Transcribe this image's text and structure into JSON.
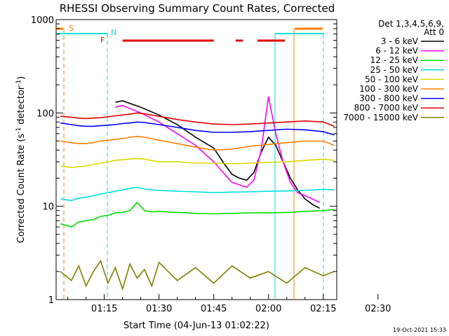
{
  "chart_data": {
    "type": "line",
    "title": "RHESSI Observing Summary Count Rates, Corrected",
    "xlabel": "Start Time (04-Jun-13 01:02:22)",
    "ylabel_main": "Corrected Count Rate (s",
    "ylabel_sup1": "-1",
    "ylabel_mid": " detector",
    "ylabel_sup2": "-1",
    "ylabel_end": ")",
    "yscale": "log",
    "ylim": [
      1,
      1000
    ],
    "xlim_min": [
      61.8,
      138.7
    ],
    "x_unit": "minutes after 00:00 UT",
    "x_ticks": [
      {
        "v": 75,
        "label": "01:15"
      },
      {
        "v": 90,
        "label": "01:30"
      },
      {
        "v": 105,
        "label": "01:45"
      },
      {
        "v": 120,
        "label": "02:00"
      },
      {
        "v": 135,
        "label": "02:15"
      },
      {
        "v": 150,
        "label": "02:30"
      }
    ],
    "y_ticks": [
      {
        "v": 1,
        "label": "1"
      },
      {
        "v": 10,
        "label": "10"
      },
      {
        "v": 100,
        "label": "100"
      },
      {
        "v": 1000,
        "label": "1000"
      }
    ],
    "legend_header": [
      "Det 1,3,4,5,6,9,",
      "Att 0"
    ],
    "legend_position": "right",
    "flags": {
      "saa_label": "S",
      "night_label": "N",
      "flare_label": "F",
      "night_color": "#00e0e0",
      "saa_color": "#ff7f00",
      "flare_color": "#e00000",
      "flare_segments": [
        [
          80,
          105
        ],
        [
          111,
          113
        ],
        [
          117,
          124.5
        ]
      ]
    },
    "footer_timestamp": "19-Oct-2021 15:33",
    "series": [
      {
        "name": "3 - 6 keV",
        "color": "#000000",
        "points": [
          [
            78,
            130
          ],
          [
            80,
            135
          ],
          [
            85,
            115
          ],
          [
            90,
            95
          ],
          [
            95,
            75
          ],
          [
            100,
            55
          ],
          [
            105,
            42
          ],
          [
            108,
            28
          ],
          [
            110,
            22
          ],
          [
            112,
            20
          ],
          [
            114,
            19
          ],
          [
            116,
            23
          ],
          [
            118,
            38
          ],
          [
            120,
            55
          ],
          [
            122,
            45
          ],
          [
            124,
            30
          ],
          [
            126,
            20
          ],
          [
            128,
            15
          ],
          [
            130,
            12
          ],
          [
            132,
            10.5
          ],
          [
            134,
            9.5
          ]
        ]
      },
      {
        "name": "6 - 12 keV",
        "color": "#ff00ff",
        "points": [
          [
            78,
            115
          ],
          [
            80,
            120
          ],
          [
            85,
            100
          ],
          [
            90,
            80
          ],
          [
            95,
            60
          ],
          [
            100,
            45
          ],
          [
            105,
            30
          ],
          [
            108,
            22
          ],
          [
            110,
            18
          ],
          [
            112,
            17
          ],
          [
            114,
            16
          ],
          [
            116,
            19
          ],
          [
            118,
            40
          ],
          [
            120,
            150
          ],
          [
            122,
            60
          ],
          [
            124,
            30
          ],
          [
            126,
            18
          ],
          [
            128,
            14
          ],
          [
            130,
            13
          ],
          [
            132,
            12
          ],
          [
            134,
            11
          ]
        ]
      },
      {
        "name": "12 - 25 keV",
        "color": "#00e000",
        "points": [
          [
            63,
            6.5
          ],
          [
            66,
            6
          ],
          [
            68,
            6.8
          ],
          [
            70,
            7
          ],
          [
            72,
            7.2
          ],
          [
            74,
            7.8
          ],
          [
            76,
            8
          ],
          [
            78,
            8.5
          ],
          [
            80,
            8.6
          ],
          [
            82,
            9
          ],
          [
            84,
            11
          ],
          [
            86,
            9
          ],
          [
            88,
            8.7
          ],
          [
            90,
            8.8
          ],
          [
            95,
            8.6
          ],
          [
            100,
            8.4
          ],
          [
            105,
            8.3
          ],
          [
            110,
            8.4
          ],
          [
            115,
            8.5
          ],
          [
            120,
            8.5
          ],
          [
            125,
            8.6
          ],
          [
            130,
            8.8
          ],
          [
            135,
            9
          ],
          [
            138,
            9.2
          ]
        ]
      },
      {
        "name": "25 - 50 keV",
        "color": "#00e0e0",
        "points": [
          [
            63,
            12
          ],
          [
            66,
            11.5
          ],
          [
            68,
            12.2
          ],
          [
            70,
            12.5
          ],
          [
            72,
            13
          ],
          [
            74,
            13.5
          ],
          [
            76,
            14
          ],
          [
            78,
            14.5
          ],
          [
            80,
            15
          ],
          [
            82,
            15.5
          ],
          [
            84,
            16
          ],
          [
            86,
            15.3
          ],
          [
            88,
            15
          ],
          [
            90,
            14.8
          ],
          [
            95,
            14.5
          ],
          [
            100,
            14.3
          ],
          [
            105,
            14
          ],
          [
            110,
            14.2
          ],
          [
            115,
            14.3
          ],
          [
            120,
            14.5
          ],
          [
            125,
            14.6
          ],
          [
            130,
            14.8
          ],
          [
            135,
            15.2
          ],
          [
            138,
            15
          ]
        ]
      },
      {
        "name": "50 - 100 keV",
        "color": "#d8d800",
        "points": [
          [
            63,
            27
          ],
          [
            66,
            26
          ],
          [
            68,
            26.5
          ],
          [
            70,
            27
          ],
          [
            72,
            28
          ],
          [
            74,
            29
          ],
          [
            76,
            30
          ],
          [
            78,
            31
          ],
          [
            80,
            31.5
          ],
          [
            82,
            32
          ],
          [
            84,
            32.5
          ],
          [
            86,
            32
          ],
          [
            88,
            31
          ],
          [
            90,
            30
          ],
          [
            95,
            30
          ],
          [
            100,
            29
          ],
          [
            105,
            29
          ],
          [
            110,
            28.5
          ],
          [
            115,
            29
          ],
          [
            120,
            29.5
          ],
          [
            125,
            30
          ],
          [
            130,
            31
          ],
          [
            135,
            32
          ],
          [
            138,
            31
          ]
        ]
      },
      {
        "name": "100 - 300 keV",
        "color": "#ff7f00",
        "points": [
          [
            63,
            50
          ],
          [
            66,
            48
          ],
          [
            68,
            47
          ],
          [
            70,
            47
          ],
          [
            72,
            48
          ],
          [
            74,
            50
          ],
          [
            76,
            51
          ],
          [
            78,
            52
          ],
          [
            80,
            53
          ],
          [
            82,
            55
          ],
          [
            84,
            56
          ],
          [
            86,
            55
          ],
          [
            88,
            53
          ],
          [
            90,
            51
          ],
          [
            95,
            47
          ],
          [
            100,
            43
          ],
          [
            105,
            40
          ],
          [
            110,
            41
          ],
          [
            115,
            44
          ],
          [
            120,
            46
          ],
          [
            125,
            48
          ],
          [
            130,
            50
          ],
          [
            135,
            50
          ],
          [
            138,
            45
          ]
        ]
      },
      {
        "name": "300 - 800 keV",
        "color": "#0000ff",
        "points": [
          [
            63,
            78
          ],
          [
            66,
            75
          ],
          [
            68,
            73
          ],
          [
            70,
            72
          ],
          [
            72,
            72
          ],
          [
            74,
            73
          ],
          [
            76,
            74
          ],
          [
            78,
            75
          ],
          [
            80,
            77
          ],
          [
            82,
            78
          ],
          [
            84,
            80
          ],
          [
            86,
            79
          ],
          [
            88,
            77
          ],
          [
            90,
            75
          ],
          [
            95,
            70
          ],
          [
            100,
            65
          ],
          [
            105,
            62
          ],
          [
            110,
            62
          ],
          [
            115,
            63
          ],
          [
            120,
            65
          ],
          [
            125,
            67
          ],
          [
            130,
            66
          ],
          [
            135,
            63
          ],
          [
            138,
            58
          ]
        ]
      },
      {
        "name": "800 - 7000 keV",
        "color": "#e00000",
        "points": [
          [
            63,
            92
          ],
          [
            66,
            90
          ],
          [
            68,
            88
          ],
          [
            70,
            87
          ],
          [
            72,
            88
          ],
          [
            74,
            89
          ],
          [
            76,
            91
          ],
          [
            78,
            93
          ],
          [
            80,
            95
          ],
          [
            82,
            97
          ],
          [
            84,
            100
          ],
          [
            86,
            98
          ],
          [
            88,
            95
          ],
          [
            90,
            92
          ],
          [
            95,
            85
          ],
          [
            100,
            80
          ],
          [
            105,
            76
          ],
          [
            110,
            75
          ],
          [
            115,
            76
          ],
          [
            120,
            78
          ],
          [
            125,
            80
          ],
          [
            130,
            82
          ],
          [
            135,
            80
          ],
          [
            138,
            72
          ]
        ]
      },
      {
        "name": "7000 - 15000 keV",
        "color": "#808000",
        "points": [
          [
            63,
            2
          ],
          [
            66,
            1.6
          ],
          [
            68,
            2.3
          ],
          [
            70,
            1.4
          ],
          [
            72,
            2
          ],
          [
            74,
            2.6
          ],
          [
            76,
            1.5
          ],
          [
            78,
            2.2
          ],
          [
            80,
            1.3
          ],
          [
            82,
            2.4
          ],
          [
            84,
            1.7
          ],
          [
            86,
            2.1
          ],
          [
            88,
            1.4
          ],
          [
            90,
            2.5
          ],
          [
            95,
            1.6
          ],
          [
            100,
            2.2
          ],
          [
            105,
            1.5
          ],
          [
            110,
            2.3
          ],
          [
            115,
            1.7
          ],
          [
            120,
            2
          ],
          [
            125,
            1.5
          ],
          [
            130,
            2.2
          ],
          [
            135,
            1.8
          ],
          [
            138,
            2
          ]
        ]
      }
    ]
  }
}
